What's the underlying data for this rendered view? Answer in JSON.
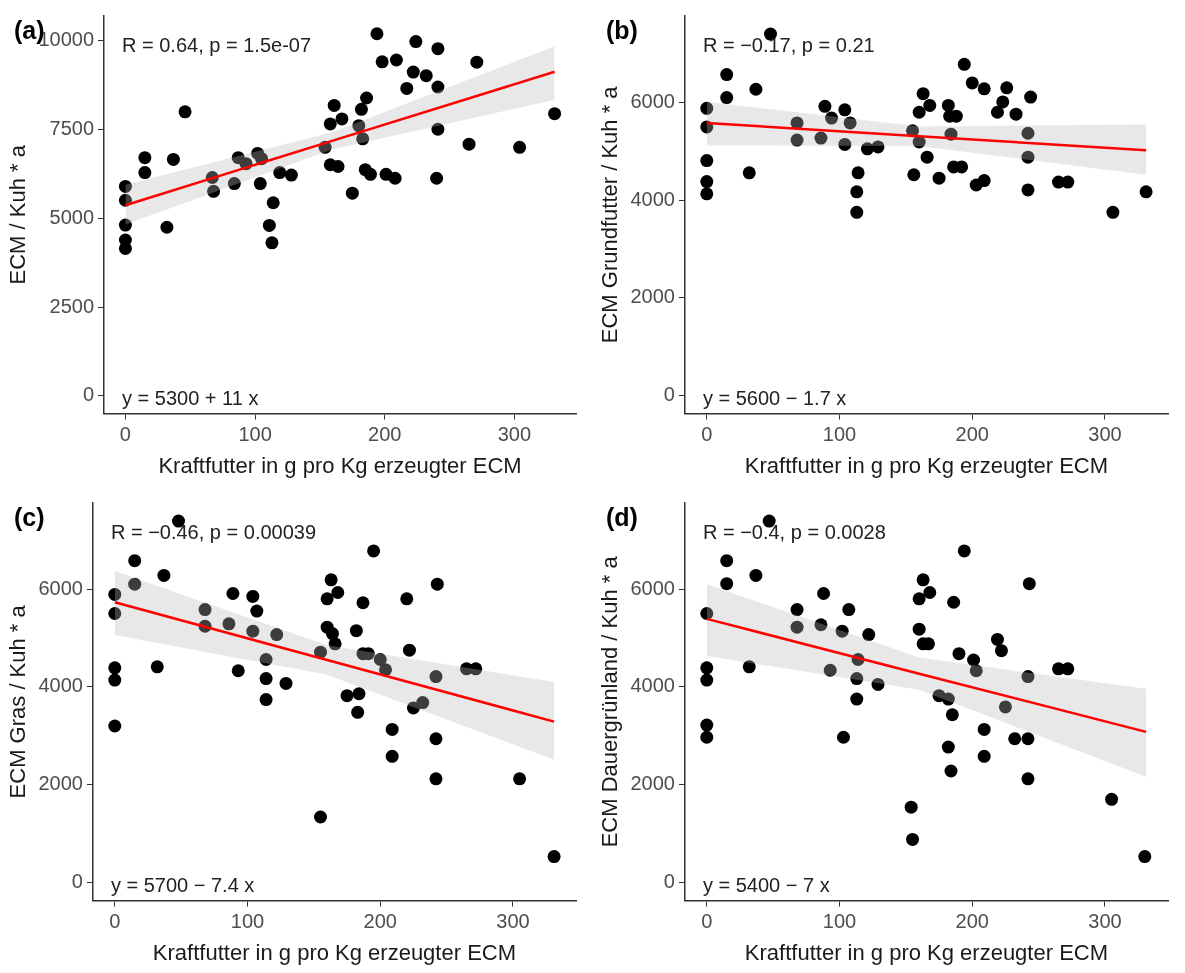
{
  "chart_data": [
    {
      "type": "scatter",
      "title": "(a)",
      "xlabel": "Kraftfutter in g pro Kg erzeugter ECM",
      "ylabel": "ECM / Kuh * a",
      "annotations": [
        "R = 0.64, p = 1.5e-07",
        "y = 5300 + 11 x"
      ],
      "xlim": [
        -16.5,
        347.5
      ],
      "xticks": [
        0,
        100,
        200,
        300
      ],
      "ylim": [
        -500,
        10700
      ],
      "yticks": [
        0,
        2500,
        5000,
        7500,
        10000
      ],
      "series": [
        {
          "color": "#000000",
          "marker": "circle",
          "x": [
            0,
            0,
            0,
            0,
            0,
            15,
            15,
            32,
            37,
            46,
            67,
            68,
            84,
            87,
            93,
            102,
            104,
            105,
            111,
            114,
            113,
            119,
            128,
            154,
            158,
            161,
            167,
            158,
            164,
            175,
            180,
            183,
            182,
            186,
            185,
            189,
            194,
            198,
            209,
            201,
            208,
            217,
            222,
            224,
            232,
            241,
            241,
            241,
            240,
            265,
            271,
            304,
            331
          ],
          "values": [
            5900,
            5510,
            4810,
            4390,
            4150,
            6710,
            6290,
            4750,
            6660,
            8000,
            6150,
            5760,
            5980,
            6710,
            6540,
            6830,
            5980,
            6680,
            4800,
            5440,
            4310,
            6290,
            6220,
            7000,
            7660,
            8180,
            7800,
            6510,
            6460,
            5710,
            7610,
            7240,
            8070,
            8390,
            6370,
            6240,
            10200,
            9410,
            9460,
            6240,
            6130,
            8660,
            9120,
            9980,
            9020,
            9780,
            8700,
            7510,
            6130,
            7090,
            9400,
            7000,
            7950
          ]
        },
        {
          "type": "line",
          "color": "#ff0000",
          "x": [
            0,
            160,
            331
          ],
          "values": [
            5370,
            7190,
            9130
          ],
          "lower": [
            4830,
            6950,
            8340
          ],
          "upper": [
            5950,
            7430,
            9850
          ]
        }
      ]
    },
    {
      "type": "scatter",
      "title": "(b)",
      "xlabel": "Kraftfutter in g pro Kg erzeugter ECM",
      "ylabel": "ECM Grundfutter / Kuh * a",
      "annotations": [
        "R = −0.17, p = 0.21",
        "y = 5600 − 1.7 x"
      ],
      "xlim": [
        -16.5,
        347.5
      ],
      "xticks": [
        0,
        100,
        200,
        300
      ],
      "ylim": [
        -370,
        7770
      ],
      "yticks": [
        0,
        2000,
        4000,
        6000
      ],
      "series": [
        {
          "color": "#000000",
          "marker": "circle",
          "x": [
            0,
            0,
            0,
            0,
            0,
            15,
            15,
            32,
            37,
            48,
            68,
            68,
            86,
            89,
            94,
            104,
            108,
            104,
            114,
            113,
            113,
            121,
            129,
            155,
            156,
            160,
            163,
            160,
            168,
            166,
            175,
            182,
            183,
            188,
            184,
            186,
            192,
            194,
            200,
            209,
            203,
            209,
            219,
            223,
            226,
            233,
            242,
            242,
            242,
            244,
            265,
            272,
            306,
            331
          ],
          "values": [
            5880,
            5500,
            4810,
            4380,
            4130,
            6570,
            6100,
            4560,
            6270,
            7400,
            5580,
            5230,
            5270,
            5920,
            5680,
            5850,
            5580,
            5140,
            4560,
            4170,
            3750,
            5050,
            5090,
            5420,
            4520,
            5190,
            6180,
            5800,
            5940,
            4880,
            4450,
            5940,
            5720,
            5720,
            5350,
            4680,
            4680,
            6780,
            6400,
            6280,
            4310,
            4400,
            5800,
            6010,
            6300,
            5760,
            5370,
            4880,
            4210,
            6110,
            4370,
            4370,
            3750,
            4170
          ]
        },
        {
          "type": "line",
          "color": "#ff0000",
          "x": [
            0,
            160,
            331
          ],
          "values": [
            5580,
            5310,
            5020
          ],
          "lower": [
            5120,
            5110,
            4520
          ],
          "upper": [
            6010,
            5510,
            5550
          ]
        }
      ]
    },
    {
      "type": "scatter",
      "title": "(c)",
      "xlabel": "Kraftfutter in g pro Kg erzeugter ECM",
      "ylabel": "ECM Gras / Kuh * a",
      "annotations": [
        "R = −0.46, p = 0.00039",
        "y = 5700 − 7.4 x"
      ],
      "xlim": [
        -16.5,
        347.5
      ],
      "xticks": [
        0,
        100,
        200,
        300
      ],
      "ylim": [
        -370,
        7760
      ],
      "yticks": [
        0,
        2000,
        4000,
        6000
      ],
      "series": [
        {
          "color": "#000000",
          "marker": "circle",
          "x": [
            0,
            0,
            0,
            0,
            0,
            15,
            15,
            32,
            37,
            48,
            68,
            68,
            86,
            89,
            93,
            104,
            107,
            104,
            114,
            114,
            114,
            122,
            129,
            155,
            155,
            160,
            163,
            160,
            168,
            164,
            166,
            175,
            184,
            183,
            182,
            187,
            187,
            191,
            195,
            200,
            204,
            209,
            209,
            220,
            222,
            225,
            232,
            242,
            242,
            242,
            243,
            265,
            272,
            305,
            331
          ],
          "values": [
            5890,
            5500,
            4390,
            4140,
            3200,
            6580,
            6100,
            4410,
            6280,
            7390,
            5580,
            5240,
            5290,
            5910,
            4330,
            5850,
            5550,
            5140,
            4560,
            4170,
            3740,
            5070,
            4070,
            1340,
            4710,
            5220,
            6190,
            5800,
            5930,
            5090,
            4880,
            3820,
            3860,
            3480,
            5150,
            5720,
            4680,
            4680,
            6780,
            4560,
            4350,
            3130,
            2580,
            5800,
            4750,
            3570,
            3680,
            4210,
            2940,
            2120,
            6100,
            4370,
            4370,
            2120,
            530
          ]
        },
        {
          "type": "line",
          "color": "#ff0000",
          "x": [
            0,
            160,
            331
          ],
          "values": [
            5730,
            4550,
            3290
          ],
          "lower": [
            5060,
            4250,
            2510
          ],
          "upper": [
            6370,
            4850,
            4100
          ]
        }
      ]
    },
    {
      "type": "scatter",
      "title": "(d)",
      "xlabel": "Kraftfutter in g pro Kg erzeugter ECM",
      "ylabel": "ECM Dauergrünland / Kuh * a",
      "annotations": [
        "R = −0.4, p = 0.0028",
        "y = 5400 − 7 x"
      ],
      "xlim": [
        -16.5,
        347.5
      ],
      "xticks": [
        0,
        100,
        200,
        300
      ],
      "ylim": [
        -370,
        7760
      ],
      "yticks": [
        0,
        2000,
        4000,
        6000
      ],
      "series": [
        {
          "color": "#000000",
          "marker": "circle",
          "x": [
            0,
            0,
            0,
            0,
            0,
            15,
            15,
            32,
            37,
            47,
            68,
            68,
            86,
            88,
            93,
            102,
            107,
            103,
            114,
            113,
            113,
            122,
            129,
            154,
            155,
            160,
            163,
            160,
            168,
            163,
            167,
            175,
            182,
            185,
            182,
            184,
            186,
            190,
            194,
            201,
            203,
            209,
            209,
            219,
            222,
            225,
            232,
            242,
            242,
            242,
            243,
            265,
            272,
            305,
            330
          ],
          "values": [
            5500,
            4390,
            4140,
            3220,
            2970,
            6580,
            6110,
            4410,
            6280,
            7390,
            5580,
            5220,
            5270,
            5910,
            4340,
            5140,
            5580,
            2970,
            4560,
            4170,
            3750,
            5070,
            4050,
            1540,
            880,
            5180,
            6190,
            5800,
            5930,
            4880,
            4880,
            3820,
            3750,
            3430,
            2770,
            2280,
            5730,
            4680,
            6780,
            4550,
            4330,
            3130,
            2580,
            4970,
            4740,
            3590,
            2940,
            2940,
            4210,
            2120,
            6110,
            4370,
            4370,
            1700,
            530
          ]
        },
        {
          "type": "line",
          "color": "#ff0000",
          "x": [
            0,
            160,
            331
          ],
          "values": [
            5390,
            4270,
            3080
          ],
          "lower": [
            4630,
            3940,
            2160
          ],
          "upper": [
            6100,
            4600,
            3960
          ]
        }
      ]
    }
  ]
}
